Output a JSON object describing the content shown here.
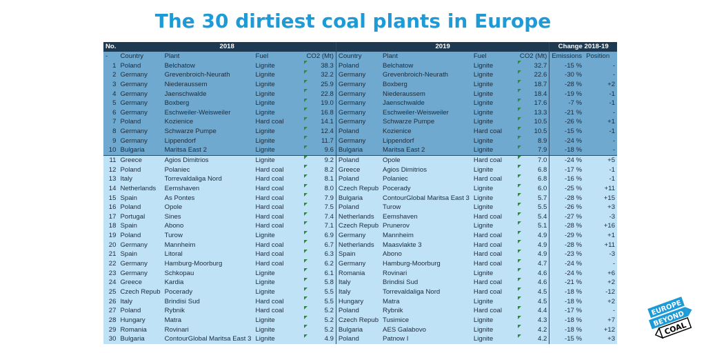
{
  "title": "The 30 dirtiest coal plants in Europe",
  "chart_data": {
    "type": "table",
    "header_groups": {
      "no": "No.",
      "y2018": "2018",
      "y2019": "2019",
      "change": "Change 2018-19"
    },
    "columns": [
      "Country",
      "Plant",
      "Fuel",
      "CO2 (Mt)",
      "Country",
      "Plant",
      "Fuel",
      "CO2 (Mt)",
      "Emissions",
      "Position"
    ],
    "rows": [
      {
        "no": "1",
        "c18": "Poland",
        "p18": "Belchatow",
        "f18": "Lignite",
        "v18": "38.3",
        "c19": "Poland",
        "p19": "Belchatow",
        "f19": "Lignite",
        "v19": "32.7",
        "em": "-15 %",
        "pos": "-"
      },
      {
        "no": "2",
        "c18": "Germany",
        "p18": "Grevenbroich-Neurath",
        "f18": "Lignite",
        "v18": "32.2",
        "c19": "Germany",
        "p19": "Grevenbroich-Neurath",
        "f19": "Lignite",
        "v19": "22.6",
        "em": "-30 %",
        "pos": "-"
      },
      {
        "no": "3",
        "c18": "Germany",
        "p18": "Niederaussem",
        "f18": "Lignite",
        "v18": "25.9",
        "c19": "Germany",
        "p19": "Boxberg",
        "f19": "Lignite",
        "v19": "18.7",
        "em": "-28 %",
        "pos": "+2"
      },
      {
        "no": "4",
        "c18": "Germany",
        "p18": "Jaenschwalde",
        "f18": "Lignite",
        "v18": "22.8",
        "c19": "Germany",
        "p19": "Niederaussem",
        "f19": "Lignite",
        "v19": "18.4",
        "em": "-19 %",
        "pos": "-1"
      },
      {
        "no": "5",
        "c18": "Germany",
        "p18": "Boxberg",
        "f18": "Lignite",
        "v18": "19.0",
        "c19": "Germany",
        "p19": "Jaenschwalde",
        "f19": "Lignite",
        "v19": "17.6",
        "em": "-7 %",
        "pos": "-1"
      },
      {
        "no": "6",
        "c18": "Germany",
        "p18": "Eschweiler-Weisweiler",
        "f18": "Lignite",
        "v18": "16.8",
        "c19": "Germany",
        "p19": "Eschweiler-Weisweiler",
        "f19": "Lignite",
        "v19": "13.3",
        "em": "-21 %",
        "pos": "-"
      },
      {
        "no": "7",
        "c18": "Poland",
        "p18": "Kozienice",
        "f18": "Hard coal",
        "v18": "14.1",
        "c19": "Germany",
        "p19": "Schwarze Pumpe",
        "f19": "Lignite",
        "v19": "10.5",
        "em": "-26 %",
        "pos": "+1"
      },
      {
        "no": "8",
        "c18": "Germany",
        "p18": "Schwarze Pumpe",
        "f18": "Lignite",
        "v18": "12.4",
        "c19": "Poland",
        "p19": "Kozienice",
        "f19": "Hard coal",
        "v19": "10.5",
        "em": "-15 %",
        "pos": "-1"
      },
      {
        "no": "9",
        "c18": "Germany",
        "p18": "Lippendorf",
        "f18": "Lignite",
        "v18": "11.7",
        "c19": "Germany",
        "p19": "Lippendorf",
        "f19": "Lignite",
        "v19": "8.9",
        "em": "-24 %",
        "pos": "-"
      },
      {
        "no": "10",
        "c18": "Bulgaria",
        "p18": "Maritsa East 2",
        "f18": "Lignite",
        "v18": "9.6",
        "c19": "Bulgaria",
        "p19": "Maritsa East 2",
        "f19": "Lignite",
        "v19": "7.9",
        "em": "-18 %",
        "pos": "-"
      },
      {
        "no": "11",
        "c18": "Greece",
        "p18": "Agios Dimitrios",
        "f18": "Lignite",
        "v18": "9.2",
        "c19": "Poland",
        "p19": "Opole",
        "f19": "Hard coal",
        "v19": "7.0",
        "em": "-24 %",
        "pos": "+5"
      },
      {
        "no": "12",
        "c18": "Poland",
        "p18": "Polaniec",
        "f18": "Hard coal",
        "v18": "8.2",
        "c19": "Greece",
        "p19": "Agios Dimitrios",
        "f19": "Lignite",
        "v19": "6.8",
        "em": "-17 %",
        "pos": "-1"
      },
      {
        "no": "13",
        "c18": "Italy",
        "p18": "Torrevaldaliga Nord",
        "f18": "Hard coal",
        "v18": "8.1",
        "c19": "Poland",
        "p19": "Polaniec",
        "f19": "Hard coal",
        "v19": "6.8",
        "em": "-16 %",
        "pos": "-1"
      },
      {
        "no": "14",
        "c18": "Netherlands",
        "p18": "Eemshaven",
        "f18": "Hard coal",
        "v18": "8.0",
        "c19": "Czech Repub",
        "p19": "Pocerady",
        "f19": "Lignite",
        "v19": "6.0",
        "em": "-25 %",
        "pos": "+11"
      },
      {
        "no": "15",
        "c18": "Spain",
        "p18": "As Pontes",
        "f18": "Hard coal",
        "v18": "7.9",
        "c19": "Bulgaria",
        "p19": "ContourGlobal Maritsa East 3",
        "f19": "Lignite",
        "v19": "5.7",
        "em": "-28 %",
        "pos": "+15"
      },
      {
        "no": "16",
        "c18": "Poland",
        "p18": "Opole",
        "f18": "Hard coal",
        "v18": "7.5",
        "c19": "Poland",
        "p19": "Turow",
        "f19": "Lignite",
        "v19": "5.5",
        "em": "-26 %",
        "pos": "+3"
      },
      {
        "no": "17",
        "c18": "Portugal",
        "p18": "Sines",
        "f18": "Hard coal",
        "v18": "7.4",
        "c19": "Netherlands",
        "p19": "Eemshaven",
        "f19": "Hard coal",
        "v19": "5.4",
        "em": "-27 %",
        "pos": "-3"
      },
      {
        "no": "18",
        "c18": "Spain",
        "p18": "Abono",
        "f18": "Hard coal",
        "v18": "7.1",
        "c19": "Czech Repub",
        "p19": "Prunerov",
        "f19": "Lignite",
        "v19": "5.1",
        "em": "-28 %",
        "pos": "+16"
      },
      {
        "no": "19",
        "c18": "Poland",
        "p18": "Turow",
        "f18": "Lignite",
        "v18": "6.9",
        "c19": "Germany",
        "p19": "Mannheim",
        "f19": "Hard coal",
        "v19": "4.9",
        "em": "-29 %",
        "pos": "+1"
      },
      {
        "no": "20",
        "c18": "Germany",
        "p18": "Mannheim",
        "f18": "Hard coal",
        "v18": "6.7",
        "c19": "Netherlands",
        "p19": "Maasvlakte 3",
        "f19": "Hard coal",
        "v19": "4.9",
        "em": "-28 %",
        "pos": "+11"
      },
      {
        "no": "21",
        "c18": "Spain",
        "p18": "Litoral",
        "f18": "Hard coal",
        "v18": "6.3",
        "c19": "Spain",
        "p19": "Abono",
        "f19": "Hard coal",
        "v19": "4.9",
        "em": "-23 %",
        "pos": "-3"
      },
      {
        "no": "22",
        "c18": "Germany",
        "p18": "Hamburg-Moorburg",
        "f18": "Hard coal",
        "v18": "6.2",
        "c19": "Germany",
        "p19": "Hamburg-Moorburg",
        "f19": "Hard coal",
        "v19": "4.7",
        "em": "-24 %",
        "pos": "-"
      },
      {
        "no": "23",
        "c18": "Germany",
        "p18": "Schkopau",
        "f18": "Lignite",
        "v18": "6.1",
        "c19": "Romania",
        "p19": "Rovinari",
        "f19": "Lignite",
        "v19": "4.6",
        "em": "-24 %",
        "pos": "+6"
      },
      {
        "no": "24",
        "c18": "Greece",
        "p18": "Kardia",
        "f18": "Lignite",
        "v18": "5.8",
        "c19": "Italy",
        "p19": "Brindisi Sud",
        "f19": "Hard coal",
        "v19": "4.6",
        "em": "-21 %",
        "pos": "+2"
      },
      {
        "no": "25",
        "c18": "Czech Repub",
        "p18": "Pocerady",
        "f18": "Lignite",
        "v18": "5.5",
        "c19": "Italy",
        "p19": "Torrevaldaliga Nord",
        "f19": "Hard coal",
        "v19": "4.5",
        "em": "-18 %",
        "pos": "-12"
      },
      {
        "no": "26",
        "c18": "Italy",
        "p18": "Brindisi Sud",
        "f18": "Hard coal",
        "v18": "5.5",
        "c19": "Hungary",
        "p19": "Matra",
        "f19": "Lignite",
        "v19": "4.5",
        "em": "-18 %",
        "pos": "+2"
      },
      {
        "no": "27",
        "c18": "Poland",
        "p18": "Rybnik",
        "f18": "Hard coal",
        "v18": "5.2",
        "c19": "Poland",
        "p19": "Rybnik",
        "f19": "Hard coal",
        "v19": "4.4",
        "em": "-17 %",
        "pos": "-"
      },
      {
        "no": "28",
        "c18": "Hungary",
        "p18": "Matra",
        "f18": "Lignite",
        "v18": "5.2",
        "c19": "Czech Repub",
        "p19": "Tusimice",
        "f19": "Lignite",
        "v19": "4.3",
        "em": "-18 %",
        "pos": "+7"
      },
      {
        "no": "29",
        "c18": "Romania",
        "p18": "Rovinari",
        "f18": "Lignite",
        "v18": "5.2",
        "c19": "Bulgaria",
        "p19": "AES Galabovo",
        "f19": "Lignite",
        "v19": "4.2",
        "em": "-18 %",
        "pos": "+12"
      },
      {
        "no": "30",
        "c18": "Bulgaria",
        "p18": "ContourGlobal Maritsa East 3",
        "f18": "Lignite",
        "v18": "4.9",
        "c19": "Poland",
        "p19": "Patnow I",
        "f19": "Lignite",
        "v19": "4.2",
        "em": "-15 %",
        "pos": "+3"
      }
    ]
  },
  "logo": {
    "line1": "EUROPE",
    "line2": "BEYOND",
    "line3": "COAL"
  },
  "colors": {
    "title": "#1e9ad6",
    "header": "#1e3a52",
    "top10": "#6fa9cf",
    "rest": "#bfe2f7",
    "logo": "#1e9ad6"
  }
}
